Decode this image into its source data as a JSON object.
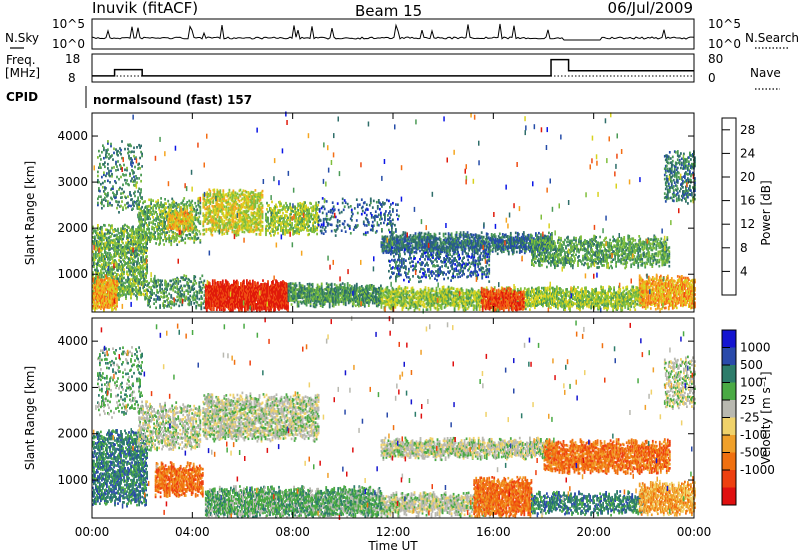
{
  "header": {
    "station": "Inuvik (fitACF)",
    "beam": "Beam 15",
    "date": "06/Jul/2009"
  },
  "nsky_panel": {
    "left_label": "N.Sky",
    "left_ticks": [
      "10^5",
      "10^0"
    ],
    "right_ticks": [
      "10^5",
      "10^0"
    ],
    "right_label": "N.Search"
  },
  "freq_panel": {
    "left_label": "Freq.",
    "left_unit": "[MHz]",
    "left_ticks": [
      "18",
      "8"
    ],
    "right_ticks": [
      "80",
      "0"
    ],
    "right_label": "Nave",
    "freq_steps": [
      {
        "t": 0.0,
        "f": 10.2
      },
      {
        "t": 0.9,
        "f": 12.4
      },
      {
        "t": 2.0,
        "f": 10.2
      },
      {
        "t": 18.3,
        "f": 16.0
      },
      {
        "t": 19.0,
        "f": 12.0
      },
      {
        "t": 24.0,
        "f": 12.0
      }
    ]
  },
  "cpid": {
    "label": "CPID",
    "value": "normalsound (fast) 157"
  },
  "colors": {
    "power": [
      "#0b16e6",
      "#254ca8",
      "#2f6e6a",
      "#4a9a55",
      "#7fbe3c",
      "#d8d21e",
      "#f6a51e",
      "#f46e14",
      "#ee4a12",
      "#e01a0a"
    ],
    "velocity": [
      "#1515d0",
      "#2a4aaa",
      "#2d7c6a",
      "#4aaa44",
      "#b8b8b0",
      "#f0d26a",
      "#f0a02a",
      "#f07010",
      "#ee4010",
      "#e01010"
    ],
    "ground_scatter": "#b8b8b0"
  },
  "chart_data": [
    {
      "type": "heatmap",
      "name": "power",
      "ylabel": "Slant Range [km]",
      "ylim": [
        180,
        4500
      ],
      "xlim": [
        0,
        24
      ],
      "y_ticks": [
        1000,
        2000,
        3000,
        4000
      ],
      "colorbar": {
        "label": "Power [dB]",
        "ticks": [
          4,
          8,
          12,
          16,
          20,
          24,
          28
        ],
        "range": [
          0,
          30
        ]
      },
      "regions": [
        {
          "t0": 0.0,
          "t1": 2.2,
          "r0": 500,
          "r1": 2000,
          "v": 12,
          "d": 0.55
        },
        {
          "t0": 0.0,
          "t1": 1.0,
          "r0": 250,
          "r1": 900,
          "v": 20,
          "d": 0.8
        },
        {
          "t0": 0.2,
          "t1": 2.0,
          "r0": 2400,
          "r1": 3800,
          "v": 9,
          "d": 0.2
        },
        {
          "t0": 1.8,
          "t1": 4.3,
          "r0": 1700,
          "r1": 2600,
          "v": 12,
          "d": 0.45
        },
        {
          "t0": 3.0,
          "t1": 4.0,
          "r0": 2000,
          "r1": 2400,
          "v": 18,
          "d": 0.7
        },
        {
          "t0": 2.2,
          "t1": 4.5,
          "r0": 300,
          "r1": 900,
          "v": 10,
          "d": 0.35
        },
        {
          "t0": 4.4,
          "t1": 6.8,
          "r0": 1900,
          "r1": 2800,
          "v": 16,
          "d": 0.6
        },
        {
          "t0": 6.9,
          "t1": 9.0,
          "r0": 1900,
          "r1": 2500,
          "v": 14,
          "d": 0.55
        },
        {
          "t0": 4.5,
          "t1": 7.8,
          "r0": 230,
          "r1": 800,
          "v": 28,
          "d": 0.97
        },
        {
          "t0": 7.8,
          "t1": 11.5,
          "r0": 350,
          "r1": 750,
          "v": 10,
          "d": 0.85
        },
        {
          "t0": 9.0,
          "t1": 12.2,
          "r0": 1900,
          "r1": 2600,
          "v": 6,
          "d": 0.18
        },
        {
          "t0": 11.5,
          "t1": 18.3,
          "r0": 1500,
          "r1": 1850,
          "v": 7,
          "d": 0.75
        },
        {
          "t0": 11.8,
          "t1": 15.8,
          "r0": 900,
          "r1": 1500,
          "v": 6,
          "d": 0.3
        },
        {
          "t0": 11.5,
          "t1": 22.0,
          "r0": 280,
          "r1": 650,
          "v": 14,
          "d": 0.75
        },
        {
          "t0": 15.5,
          "t1": 17.2,
          "r0": 250,
          "r1": 650,
          "v": 26,
          "d": 0.85
        },
        {
          "t0": 17.5,
          "t1": 23.0,
          "r0": 1200,
          "r1": 1750,
          "v": 11,
          "d": 0.55
        },
        {
          "t0": 21.8,
          "t1": 24.0,
          "r0": 300,
          "r1": 900,
          "v": 20,
          "d": 0.75
        },
        {
          "t0": 22.8,
          "t1": 24.0,
          "r0": 2600,
          "r1": 3600,
          "v": 8,
          "d": 0.4
        }
      ]
    },
    {
      "type": "heatmap",
      "name": "velocity",
      "ylabel": "Slant Range [km]",
      "xlabel": "Time UT",
      "ylim": [
        180,
        4500
      ],
      "xlim": [
        0,
        24
      ],
      "y_ticks": [
        1000,
        2000,
        3000,
        4000
      ],
      "x_ticks": [
        "00:00",
        "04:00",
        "08:00",
        "12:00",
        "16:00",
        "20:00",
        "00:00"
      ],
      "colorbar": {
        "label": "Velocity [m s⁻¹]",
        "ticks": [
          "1000",
          "500",
          "100",
          "25",
          "-25",
          "-100",
          "-500",
          "-1000"
        ]
      },
      "regions": [
        {
          "t0": 0.0,
          "t1": 2.2,
          "r0": 500,
          "r1": 2000,
          "v": 2,
          "d": 0.55
        },
        {
          "t0": 0.2,
          "t1": 2.0,
          "r0": 2400,
          "r1": 3800,
          "v": 3,
          "d": 0.2
        },
        {
          "t0": 1.8,
          "t1": 4.3,
          "r0": 1700,
          "r1": 2600,
          "v": 4,
          "d": 0.45
        },
        {
          "t0": 2.5,
          "t1": 4.4,
          "r0": 700,
          "r1": 1300,
          "v": 7,
          "d": 0.7
        },
        {
          "t0": 4.4,
          "t1": 9.0,
          "r0": 1900,
          "r1": 2800,
          "v": 4,
          "d": 0.6
        },
        {
          "t0": 4.5,
          "t1": 11.5,
          "r0": 230,
          "r1": 800,
          "v": 3,
          "d": 0.75
        },
        {
          "t0": 11.5,
          "t1": 18.3,
          "r0": 1500,
          "r1": 1850,
          "v": 4,
          "d": 0.75
        },
        {
          "t0": 11.5,
          "t1": 16.0,
          "r0": 280,
          "r1": 650,
          "v": 4,
          "d": 0.7
        },
        {
          "t0": 15.2,
          "t1": 17.5,
          "r0": 250,
          "r1": 1000,
          "v": 7,
          "d": 0.8
        },
        {
          "t0": 18.0,
          "t1": 23.0,
          "r0": 1200,
          "r1": 1800,
          "v": 7,
          "d": 0.7
        },
        {
          "t0": 17.5,
          "t1": 22.0,
          "r0": 300,
          "r1": 700,
          "v": 2,
          "d": 0.55
        },
        {
          "t0": 21.8,
          "t1": 24.0,
          "r0": 300,
          "r1": 900,
          "v": 6,
          "d": 0.7
        },
        {
          "t0": 22.8,
          "t1": 24.0,
          "r0": 2600,
          "r1": 3600,
          "v": 4,
          "d": 0.4
        }
      ]
    }
  ]
}
